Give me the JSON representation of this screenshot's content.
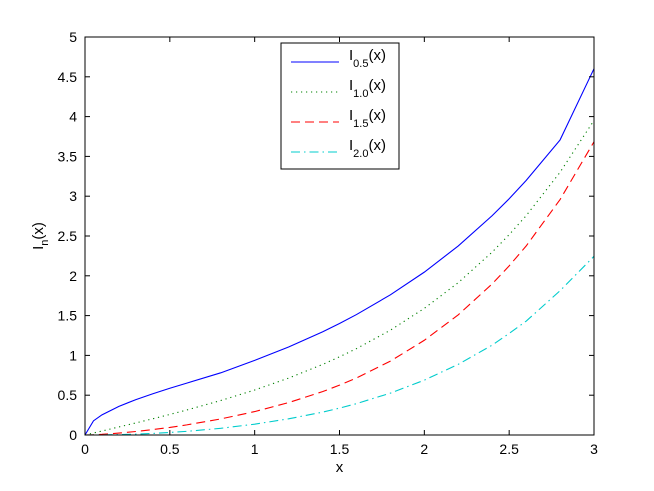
{
  "chart_data": {
    "type": "line",
    "xlabel": "x",
    "ylabel": {
      "main": "I",
      "sub": "n",
      "tail": "(x)"
    },
    "xlim": [
      0,
      3
    ],
    "ylim": [
      0,
      5
    ],
    "xticks": [
      0,
      0.5,
      1,
      1.5,
      2,
      2.5,
      3
    ],
    "xtick_labels": [
      "0",
      "0.5",
      "1",
      "1.5",
      "2",
      "2.5",
      "3"
    ],
    "yticks": [
      0,
      0.5,
      1,
      1.5,
      2,
      2.5,
      3,
      3.5,
      4,
      4.5,
      5
    ],
    "ytick_labels": [
      "0",
      "0.5",
      "1",
      "1.5",
      "2",
      "2.5",
      "3",
      "3.5",
      "4",
      "4.5",
      "5"
    ],
    "grid": false,
    "legend_position": "top-center",
    "x": [
      0,
      0.05,
      0.1,
      0.2,
      0.3,
      0.4,
      0.5,
      0.6,
      0.8,
      1.0,
      1.2,
      1.4,
      1.5,
      1.6,
      1.8,
      2.0,
      2.2,
      2.4,
      2.5,
      2.6,
      2.8,
      3.0
    ],
    "series": [
      {
        "name": "I0.5(x)",
        "legend_label": {
          "main": "I",
          "sub": "0.5",
          "tail": "(x)"
        },
        "color": "#0000ff",
        "dash": "solid",
        "values": [
          0,
          0.178,
          0.253,
          0.36,
          0.445,
          0.518,
          0.587,
          0.652,
          0.781,
          0.937,
          1.106,
          1.296,
          1.401,
          1.513,
          1.761,
          2.046,
          2.375,
          2.756,
          2.968,
          3.197,
          3.707,
          4.602
        ]
      },
      {
        "name": "I1.0(x)",
        "legend_label": {
          "main": "I",
          "sub": "1.0",
          "tail": "(x)"
        },
        "color": "#008000",
        "dash": "dotted",
        "values": [
          0,
          0.025,
          0.05,
          0.101,
          0.152,
          0.204,
          0.258,
          0.314,
          0.433,
          0.565,
          0.715,
          0.886,
          0.982,
          1.085,
          1.317,
          1.591,
          1.914,
          2.298,
          2.517,
          2.755,
          3.301,
          3.953
        ]
      },
      {
        "name": "I1.5(x)",
        "legend_label": {
          "main": "I",
          "sub": "1.5",
          "tail": "(x)"
        },
        "color": "#ff0000",
        "dash": "dashed",
        "values": [
          0,
          0.003,
          0.008,
          0.024,
          0.044,
          0.068,
          0.095,
          0.127,
          0.202,
          0.294,
          0.407,
          0.545,
          0.626,
          0.716,
          0.928,
          1.19,
          1.51,
          1.899,
          2.125,
          2.374,
          2.958,
          3.684
        ]
      },
      {
        "name": "I2.0(x)",
        "legend_label": {
          "main": "I",
          "sub": "2.0",
          "tail": "(x)"
        },
        "color": "#00cccc",
        "dash": "dashdot",
        "values": [
          0,
          0.0003,
          0.0013,
          0.005,
          0.011,
          0.02,
          0.032,
          0.046,
          0.084,
          0.136,
          0.203,
          0.287,
          0.338,
          0.394,
          0.526,
          0.689,
          0.888,
          1.129,
          1.276,
          1.43,
          1.813,
          2.245
        ]
      }
    ]
  }
}
